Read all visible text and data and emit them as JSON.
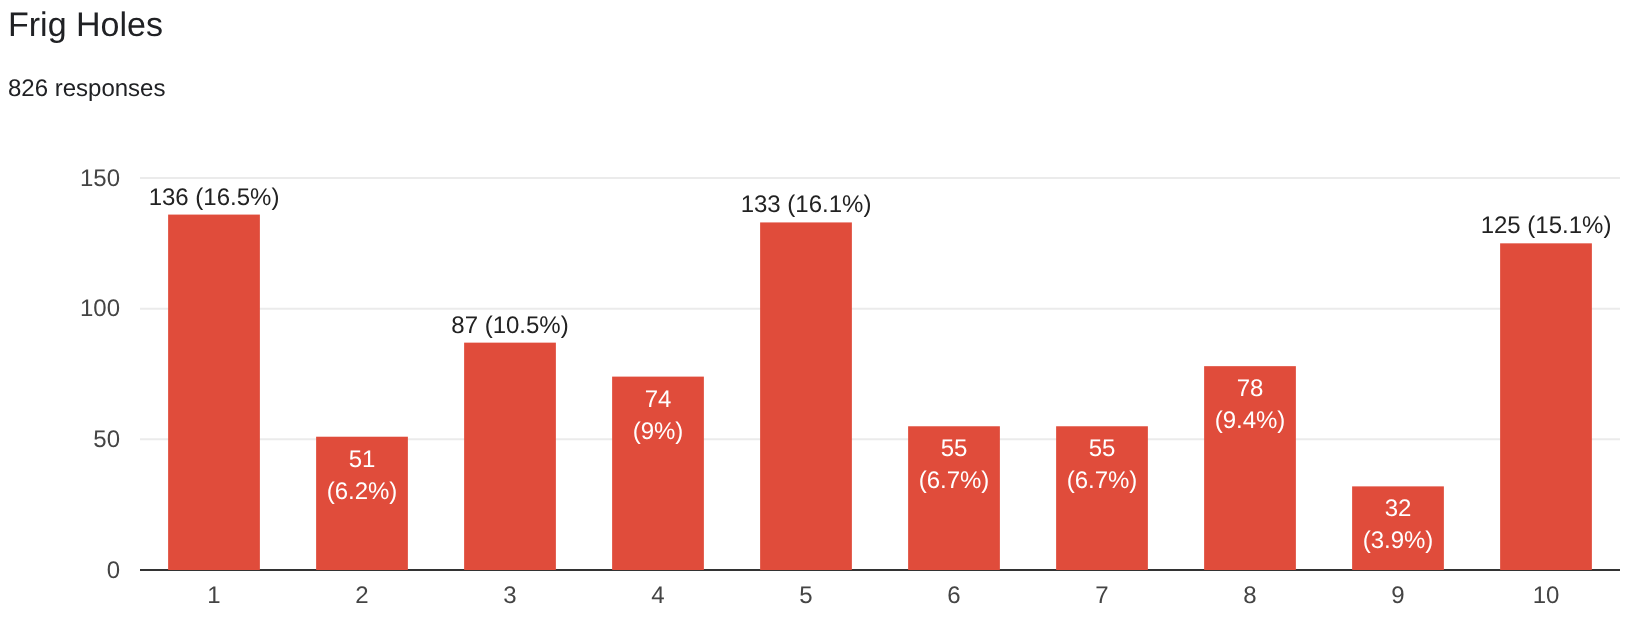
{
  "chart_data": {
    "type": "bar",
    "title": "Frig Holes",
    "subtitle": "826 responses",
    "categories": [
      "1",
      "2",
      "3",
      "4",
      "5",
      "6",
      "7",
      "8",
      "9",
      "10"
    ],
    "values": [
      136,
      51,
      87,
      74,
      133,
      55,
      55,
      78,
      32,
      125
    ],
    "value_labels": [
      "136 (16.5%)",
      "51 (6.2%)",
      "87 (10.5%)",
      "74 (9%)",
      "133 (16.1%)",
      "55 (6.7%)",
      "55 (6.7%)",
      "78 (9.4%)",
      "32 (3.9%)",
      "125 (15.1%)"
    ],
    "color": "#e04c3b",
    "ylim": [
      0,
      150
    ],
    "yticks": [
      0,
      50,
      100,
      150
    ],
    "grid": "y"
  }
}
